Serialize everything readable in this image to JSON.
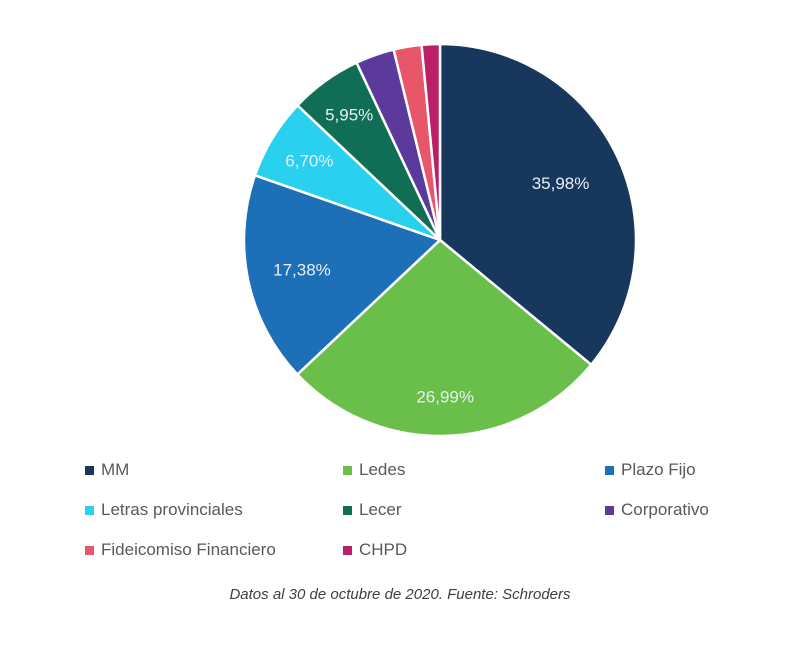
{
  "chart_data": {
    "type": "pie",
    "title": "",
    "legend_position": "bottom",
    "start_angle_deg": -90,
    "direction": "clockwise",
    "stroke_color": "#ffffff",
    "slices": [
      {
        "label": "MM",
        "value": 35.98,
        "display": "35,98%",
        "color": "#17375d",
        "label_radius": 0.68
      },
      {
        "label": "Ledes",
        "value": 26.99,
        "display": "26,99%",
        "color": "#6abf4b",
        "label_radius": 0.8
      },
      {
        "label": "Plazo Fijo",
        "value": 17.38,
        "display": "17,38%",
        "color": "#1d70b8",
        "label_radius": 0.72
      },
      {
        "label": "Letras provinciales",
        "value": 6.7,
        "display": "6,70%",
        "color": "#29d1ee",
        "label_radius": 0.78
      },
      {
        "label": "Lecer",
        "value": 5.95,
        "display": "5,95%",
        "color": "#0f6e55",
        "label_radius": 0.79
      },
      {
        "label": "Corporativo",
        "value": 3.2,
        "display": "",
        "color": "#5b3a9b",
        "label_radius": 0
      },
      {
        "label": "Fideicomiso Financiero",
        "value": 2.3,
        "display": "",
        "color": "#e8566a",
        "label_radius": 0
      },
      {
        "label": "CHPD",
        "value": 1.5,
        "display": "",
        "color": "#bb1f67",
        "label_radius": 0
      }
    ]
  },
  "caption": "Datos al 30 de octubre de 2020. Fuente: Schroders"
}
